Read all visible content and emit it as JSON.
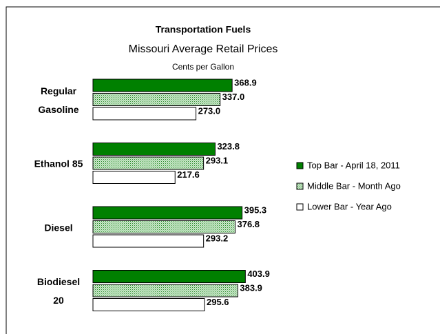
{
  "chart_data": {
    "type": "bar",
    "orientation": "horizontal",
    "title": "Transportation Fuels",
    "subtitle": "Missouri Average Retail Prices",
    "unit": "Cents per Gallon",
    "categories": [
      "Regular\nGasoline",
      "Ethanol 85",
      "Diesel",
      "Biodiesel\n20"
    ],
    "series": [
      {
        "name": "Top Bar - April 18, 2011",
        "color": "#008000",
        "values": [
          368.9,
          323.8,
          395.3,
          403.9
        ],
        "value_labels": [
          "368.9",
          "323.8",
          "395.3",
          "403.9"
        ]
      },
      {
        "name": "Middle Bar - Month Ago",
        "color": "#c8e8c8",
        "values": [
          337,
          293.1,
          376.8,
          383.9
        ],
        "value_labels": [
          "337.0",
          "293.1",
          "376.8",
          "383.9"
        ]
      },
      {
        "name": "Lower Bar - Year Ago",
        "color": "#ffffff",
        "values": [
          273,
          217.6,
          293.2,
          295.6
        ],
        "value_labels": [
          "273.0",
          "217.6",
          "293.2",
          "295.6"
        ]
      }
    ],
    "legend": "right"
  }
}
